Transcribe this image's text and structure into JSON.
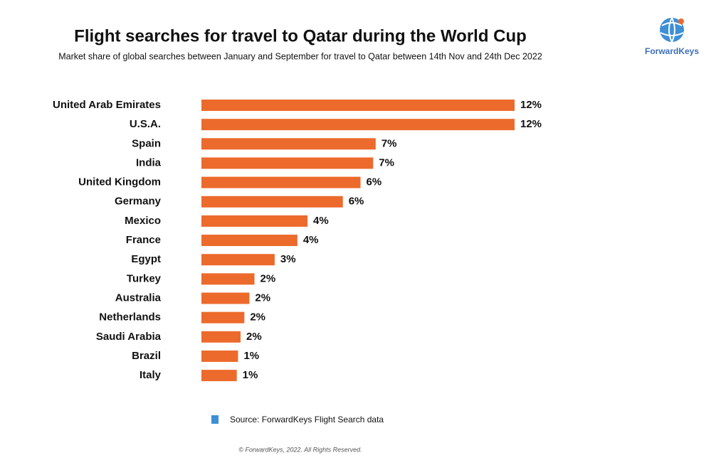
{
  "chart_data": {
    "type": "bar",
    "orientation": "horizontal",
    "title": "Flight searches for travel to Qatar during the World Cup",
    "subtitle": "Market share of global searches between January and September for travel to Qatar between 14th Nov and 24th Dec 2022",
    "categories": [
      "United Arab Emirates",
      "U.S.A.",
      "Spain",
      "India",
      "United Kingdom",
      "Germany",
      "Mexico",
      "France",
      "Egypt",
      "Turkey",
      "Australia",
      "Netherlands",
      "Saudi Arabia",
      "Brazil",
      "Italy"
    ],
    "values": [
      12.4,
      12.4,
      6.9,
      6.8,
      6.3,
      5.6,
      4.2,
      3.8,
      2.9,
      2.1,
      1.9,
      1.7,
      1.55,
      1.45,
      1.4
    ],
    "value_labels": [
      "12%",
      "12%",
      "7%",
      "7%",
      "6%",
      "6%",
      "4%",
      "4%",
      "3%",
      "2%",
      "2%",
      "2%",
      "2%",
      "1%",
      "1%"
    ],
    "color": "#ec6a2c",
    "source": "Source: ForwardKeys Flight Search data",
    "copyright": "© ForwardKeys, 2022. All Rights Reserved.",
    "logo": "ForwardKeys"
  }
}
